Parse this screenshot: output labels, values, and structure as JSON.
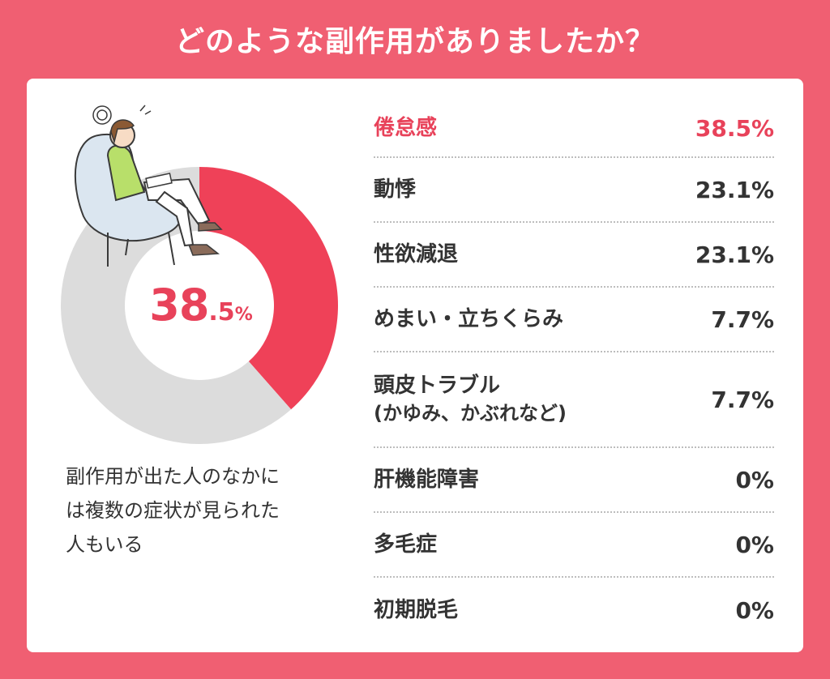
{
  "title": "どのような副作用がありましたか？",
  "chart_data": {
    "type": "pie",
    "style": "donut",
    "slices": [
      {
        "value": 38.5,
        "color": "#ef4158"
      },
      {
        "value": 61.5,
        "color": "#dcdcdc"
      }
    ],
    "center_value": {
      "main": "38.5",
      "decimal_part": ".5",
      "integer_part": "38",
      "symbol": "%"
    }
  },
  "note": [
    "副作用が出た人のなかに",
    "は複数の症状が見られた",
    "人もいる"
  ],
  "items": [
    {
      "label": "倦怠感",
      "value": "38.5%",
      "highlight": true
    },
    {
      "label": "動悸",
      "value": "23.1%"
    },
    {
      "label": "性欲減退",
      "value": "23.1%"
    },
    {
      "label": "めまい・立ちくらみ",
      "value": "7.7%"
    },
    {
      "label": "頭皮トラブル",
      "sublabel": "(かゆみ、かぶれなど)",
      "value": "7.7%"
    },
    {
      "label": "肝機能障害",
      "value": "0%"
    },
    {
      "label": "多毛症",
      "value": "0%"
    },
    {
      "label": "初期脱毛",
      "value": "0%"
    }
  ],
  "colors": {
    "background": "#f05f72",
    "accent": "#e8425a",
    "remainder": "#dcdcdc"
  }
}
